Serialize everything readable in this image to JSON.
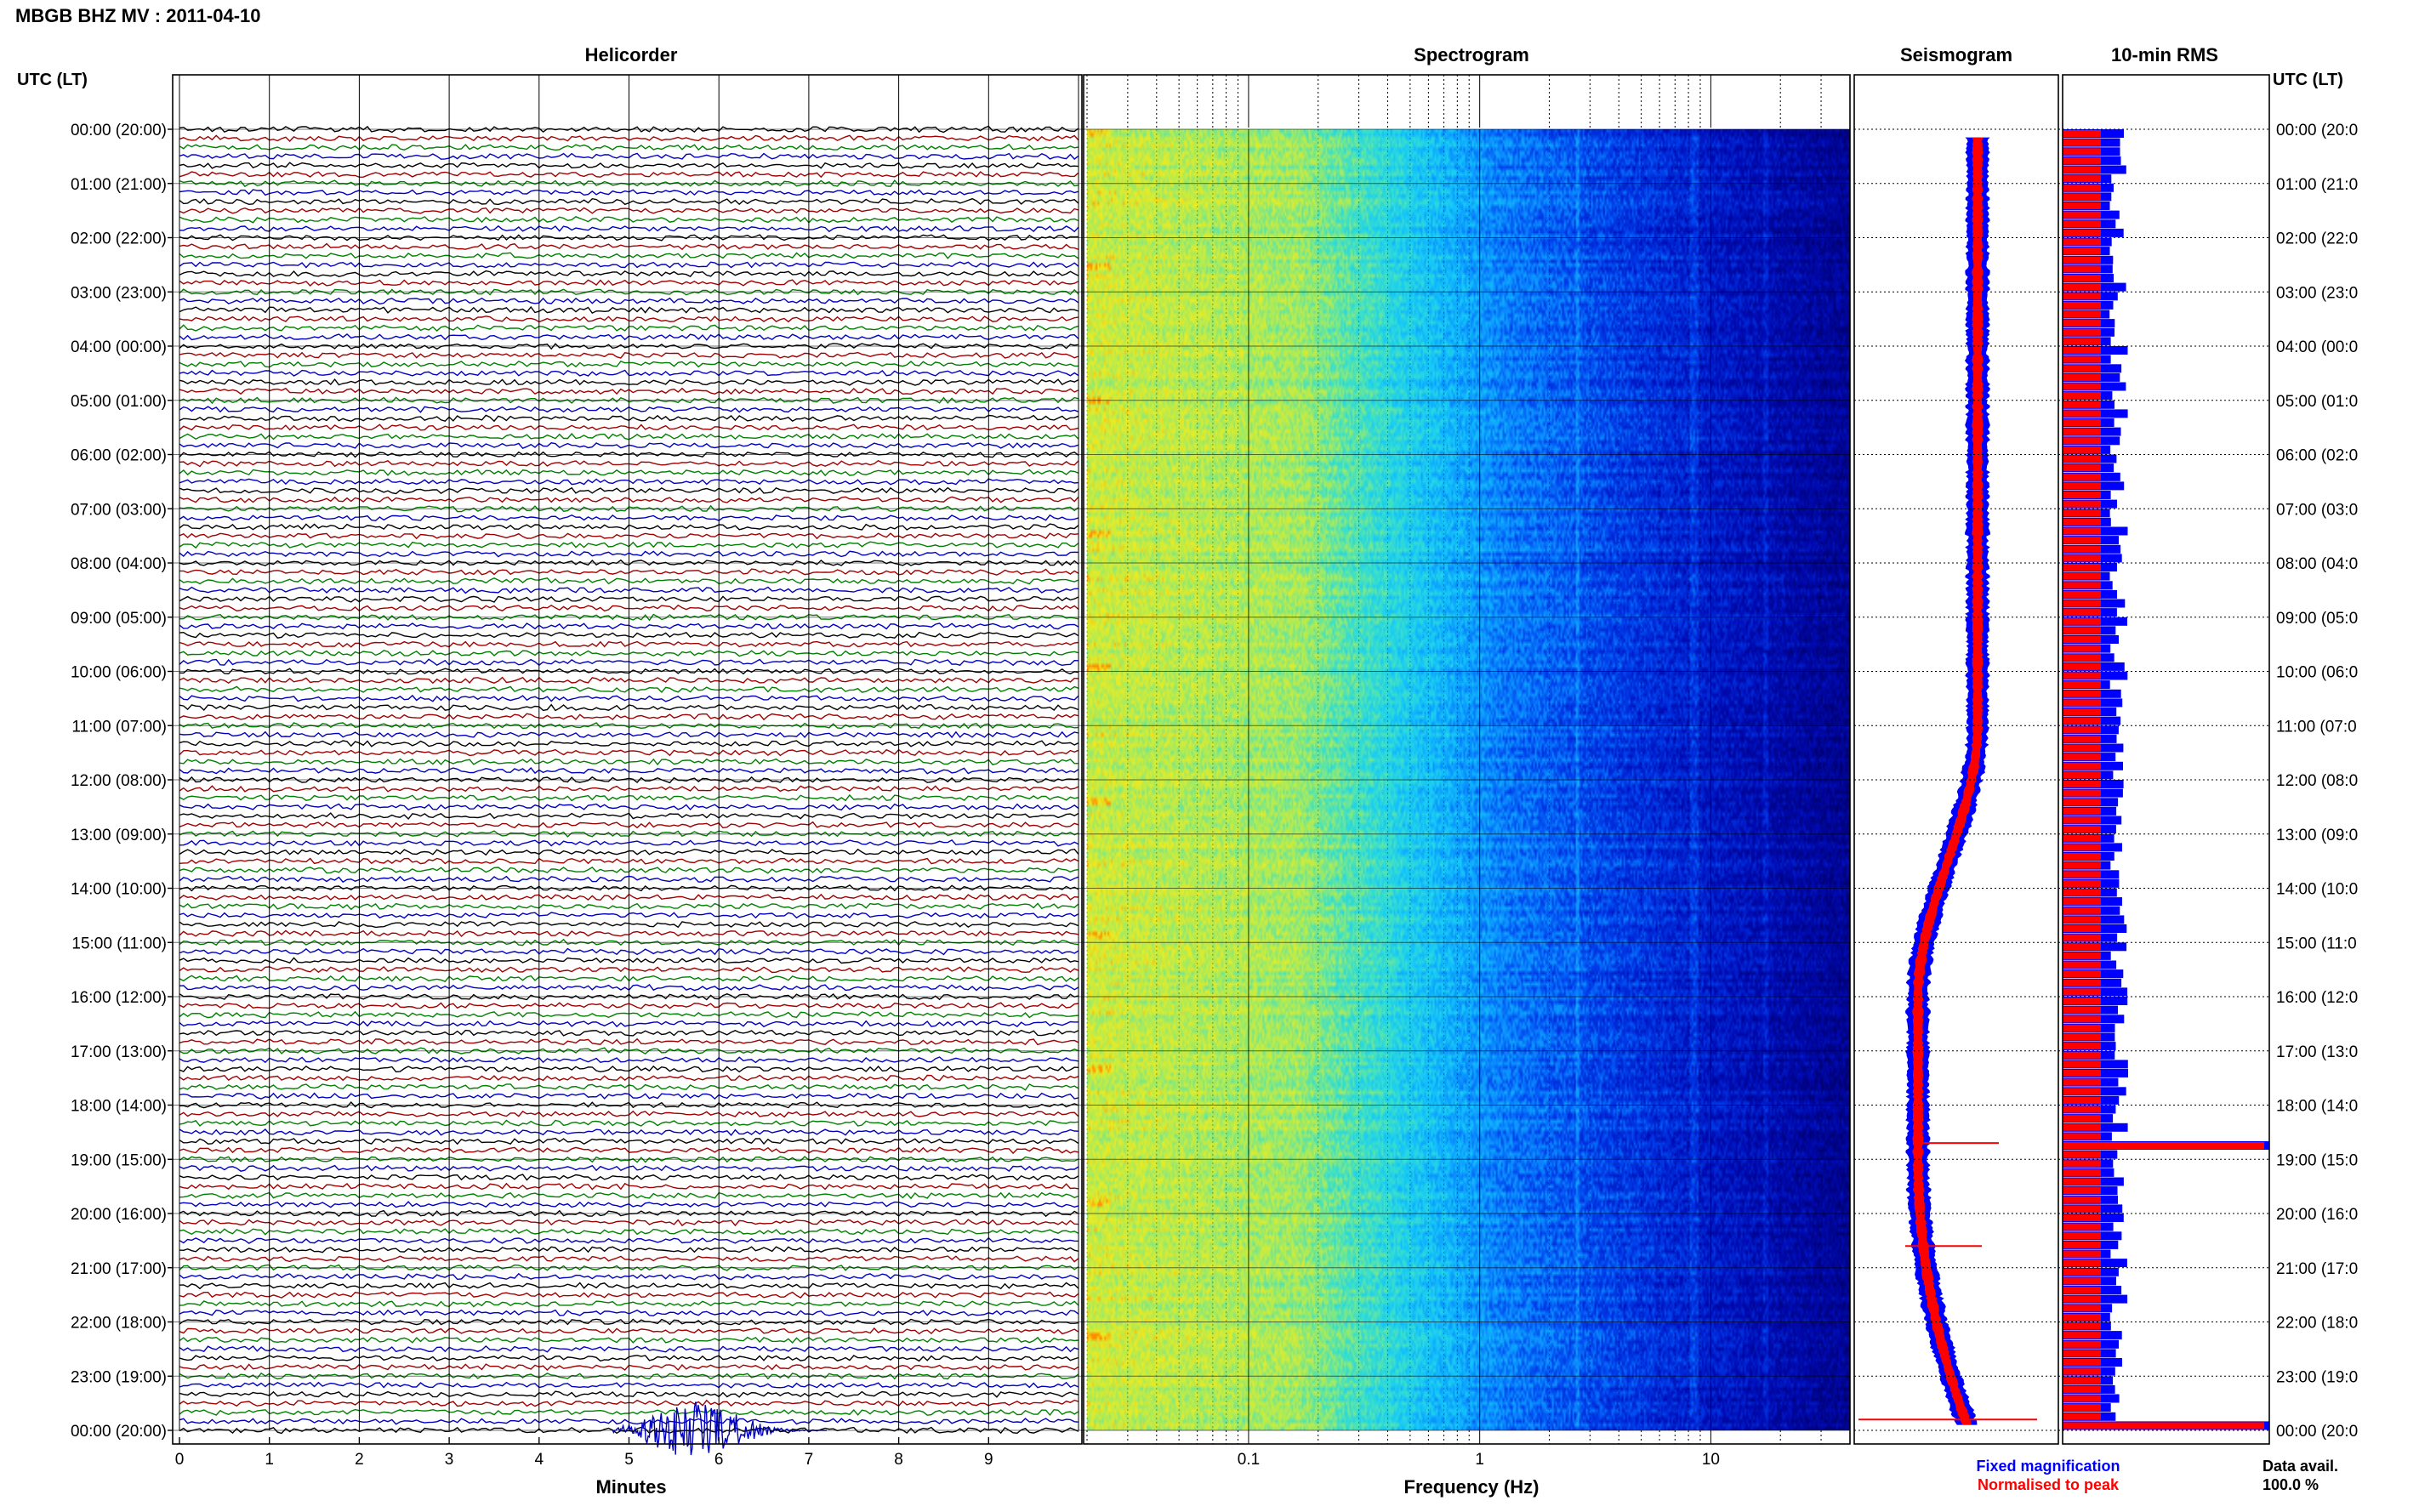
{
  "figure_title": "MBGB BHZ MV : 2011-04-10",
  "utc_label_left": "UTC (LT)",
  "utc_label_right": "UTC (LT)",
  "panels": {
    "helicorder": "Helicorder",
    "spectrogram": "Spectrogram",
    "seismogram": "Seismogram",
    "rms": "10-min RMS"
  },
  "helicorder": {
    "x_ticks": [
      "0",
      "1",
      "2",
      "3",
      "4",
      "5",
      "6",
      "7",
      "8",
      "9"
    ],
    "xlabel": "Minutes",
    "trace_colors": [
      "#000000",
      "#a00000",
      "#008000",
      "#0000c0"
    ]
  },
  "time_labels_left": [
    "00:00 (20:00)",
    "01:00 (21:00)",
    "02:00 (22:00)",
    "03:00 (23:00)",
    "04:00 (00:00)",
    "05:00 (01:00)",
    "06:00 (02:00)",
    "07:00 (03:00)",
    "08:00 (04:00)",
    "09:00 (05:00)",
    "10:00 (06:00)",
    "11:00 (07:00)",
    "12:00 (08:00)",
    "13:00 (09:00)",
    "14:00 (10:00)",
    "15:00 (11:00)",
    "16:00 (12:00)",
    "17:00 (13:00)",
    "18:00 (14:00)",
    "19:00 (15:00)",
    "20:00 (16:00)",
    "21:00 (17:00)",
    "22:00 (18:00)",
    "23:00 (19:00)",
    "00:00 (20:00)"
  ],
  "time_labels_right": [
    "00:00 (20:0",
    "01:00 (21:0",
    "02:00 (22:0",
    "03:00 (23:0",
    "04:00 (00:0",
    "05:00 (01:0",
    "06:00 (02:0",
    "07:00 (03:0",
    "08:00 (04:0",
    "09:00 (05:0",
    "10:00 (06:0",
    "11:00 (07:0",
    "12:00 (08:0",
    "13:00 (09:0",
    "14:00 (10:0",
    "15:00 (11:0",
    "16:00 (12:0",
    "17:00 (13:0",
    "18:00 (14:0",
    "19:00 (15:0",
    "20:00 (16:0",
    "21:00 (17:0",
    "22:00 (18:0",
    "23:00 (19:0",
    "00:00 (20:0"
  ],
  "spectrogram": {
    "x_ticks": [
      "0.1",
      "1",
      "10"
    ],
    "xlabel": "Frequency (Hz)"
  },
  "legend": {
    "fixed": "Fixed magnification",
    "normalised": "Normalised to peak",
    "fixed_color": "#0000ff",
    "normalised_color": "#ff0000"
  },
  "data_avail": {
    "label": "Data avail.",
    "value": "100.0 %"
  },
  "chart_data": {
    "type": "heatmap",
    "title": "MBGB BHZ MV : 2011-04-10",
    "x": {
      "helicorder_minutes": [
        0,
        10
      ],
      "spectrogram_hz_log": [
        0.02,
        40
      ]
    },
    "y_hours_utc": [
      0,
      24
    ],
    "grid": true,
    "rms_spikes_hours": [
      18.7,
      23.8
    ]
  }
}
